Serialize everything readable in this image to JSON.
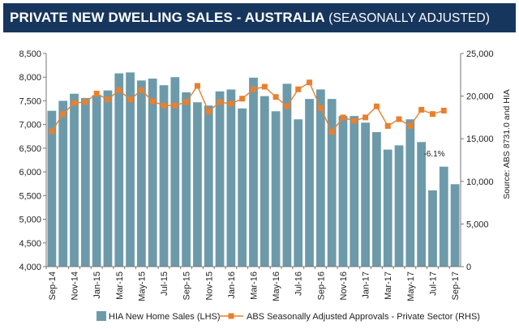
{
  "header": {
    "title_bold": "PRIVATE NEW DWELLING SALES -  AUSTRALIA",
    "title_light": "(SEASONALLY ADJUSTED)"
  },
  "colors": {
    "header_bg": "#17365d",
    "bar": "#6d9aaa",
    "line": "#e8802e"
  },
  "chart_data": {
    "type": "bar",
    "title": "PRIVATE NEW DWELLING SALES - AUSTRALIA (SEASONALLY ADJUSTED)",
    "source": "Source: ABS 8731.0 and HIA",
    "categories": [
      "Sep-14",
      "Oct-14",
      "Nov-14",
      "Dec-14",
      "Jan-15",
      "Feb-15",
      "Mar-15",
      "Apr-15",
      "May-15",
      "Jun-15",
      "Jul-15",
      "Aug-15",
      "Sep-15",
      "Oct-15",
      "Nov-15",
      "Dec-15",
      "Jan-16",
      "Feb-16",
      "Mar-16",
      "Apr-16",
      "May-16",
      "Jun-16",
      "Jul-16",
      "Aug-16",
      "Sep-16",
      "Oct-16",
      "Nov-16",
      "Dec-16",
      "Jan-17",
      "Feb-17",
      "Mar-17",
      "Apr-17",
      "May-17",
      "Jun-17",
      "Jul-17",
      "Aug-17",
      "Sep-17"
    ],
    "x_tick_labels": [
      "Sep-14",
      "Nov-14",
      "Jan-15",
      "Mar-15",
      "May-15",
      "Jul-15",
      "Sep-15",
      "Nov-15",
      "Jan-16",
      "Mar-16",
      "May-16",
      "Jul-16",
      "Sep-16",
      "Nov-16",
      "Jan-17",
      "Mar-17",
      "May-17",
      "Jul-17",
      "Sep-17"
    ],
    "series": [
      {
        "name": "HIA New Home Sales (LHS)",
        "axis": "left",
        "kind": "bar",
        "values": [
          7290,
          7500,
          7650,
          7560,
          7620,
          7720,
          8080,
          8100,
          7930,
          7970,
          7830,
          8000,
          7680,
          7470,
          7400,
          7700,
          7740,
          7340,
          7990,
          7600,
          7280,
          7860,
          7110,
          7540,
          7740,
          7540,
          7180,
          7180,
          7040,
          6840,
          6470,
          6560,
          7110,
          6630,
          5610,
          6110,
          5740
        ]
      },
      {
        "name": "ABS Seasonally Adjusted Approvals - Private Sector (RHS)",
        "axis": "right",
        "kind": "line",
        "values": [
          15900,
          17900,
          19200,
          19300,
          20300,
          19600,
          20700,
          19600,
          20700,
          19400,
          18900,
          18900,
          19300,
          21200,
          18200,
          19300,
          19100,
          19700,
          20800,
          21100,
          19900,
          18800,
          20800,
          21600,
          18600,
          15800,
          17500,
          17100,
          17500,
          18800,
          16500,
          17300,
          16500,
          18400,
          17900,
          18300,
          null
        ]
      }
    ],
    "y_left": {
      "min": 4000,
      "max": 8500,
      "ticks": [
        4000,
        4500,
        5000,
        5500,
        6000,
        6500,
        7000,
        7500,
        8000,
        8500
      ],
      "tick_labels": [
        "4,000",
        "4,500",
        "5,000",
        "5,500",
        "6,000",
        "6,500",
        "7,000",
        "7,500",
        "8,000",
        "8,500"
      ]
    },
    "y_right": {
      "min": 0,
      "max": 25000,
      "ticks": [
        0,
        5000,
        10000,
        15000,
        20000,
        25000
      ],
      "tick_labels": [
        "0",
        "5,000",
        "10,000",
        "15,000",
        "20,000",
        "25,000"
      ]
    },
    "annotation": {
      "text": "-6.1%",
      "category": "Jul-17"
    },
    "legend_position": "bottom",
    "grid": false
  }
}
